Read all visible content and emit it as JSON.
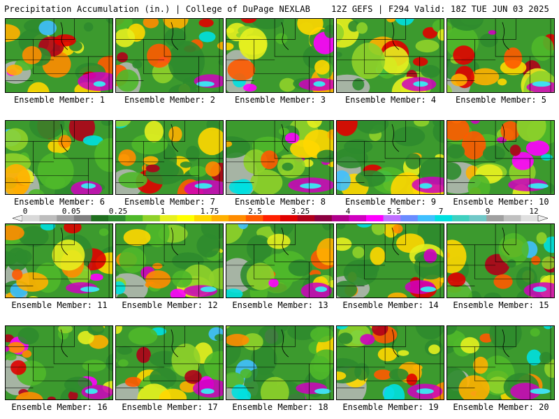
{
  "header": {
    "left_title": "Precipitation Accumulation (in.) | College of DuPage NEXLAB",
    "right_title": "12Z GEFS | F294 Valid: 18Z TUE JUN 03 2025"
  },
  "members": [
    {
      "label": "Ensemble Member: 1",
      "seed": 11
    },
    {
      "label": "Ensemble Member: 2",
      "seed": 27
    },
    {
      "label": "Ensemble Member: 3",
      "seed": 33
    },
    {
      "label": "Ensemble Member: 4",
      "seed": 41
    },
    {
      "label": "Ensemble Member: 5",
      "seed": 59
    },
    {
      "label": "Ensemble Member: 6",
      "seed": 63
    },
    {
      "label": "Ensemble Member: 7",
      "seed": 71
    },
    {
      "label": "Ensemble Member: 8",
      "seed": 89
    },
    {
      "label": "Ensemble Member: 9",
      "seed": 97
    },
    {
      "label": "Ensemble Member: 10",
      "seed": 101
    },
    {
      "label": "Ensemble Member: 11",
      "seed": 113
    },
    {
      "label": "Ensemble Member: 12",
      "seed": 127
    },
    {
      "label": "Ensemble Member: 13",
      "seed": 131
    },
    {
      "label": "Ensemble Member: 14",
      "seed": 149
    },
    {
      "label": "Ensemble Member: 15",
      "seed": 151
    },
    {
      "label": "Ensemble Member: 16",
      "seed": 163
    },
    {
      "label": "Ensemble Member: 17",
      "seed": 173
    },
    {
      "label": "Ensemble Member: 18",
      "seed": 181
    },
    {
      "label": "Ensemble Member: 19",
      "seed": 191
    },
    {
      "label": "Ensemble Member: 20",
      "seed": 199
    }
  ],
  "legend": {
    "tick_labels": [
      "0",
      "0.05",
      "0.25",
      "1",
      "1.75",
      "2.5",
      "3.25",
      "4",
      "5.5",
      "7",
      "9",
      "12"
    ],
    "colors": [
      "#d9d9d9",
      "#bdbdbd",
      "#9e9e9e",
      "#7f7f7f",
      "#1f6f1f",
      "#2e8b2e",
      "#4fb82a",
      "#8fd12a",
      "#e6f01f",
      "#ffff00",
      "#ffd700",
      "#ffb000",
      "#ff8c00",
      "#ff5a00",
      "#ff2000",
      "#e00000",
      "#b0001a",
      "#8b0040",
      "#b0008b",
      "#d000c0",
      "#ff00ff",
      "#c070ff",
      "#6a8cff",
      "#40c0ff",
      "#00e0e0",
      "#40d0c0",
      "#70c8c8",
      "#a0a0a0",
      "#c0c0c0",
      "#e0e0e0"
    ]
  }
}
